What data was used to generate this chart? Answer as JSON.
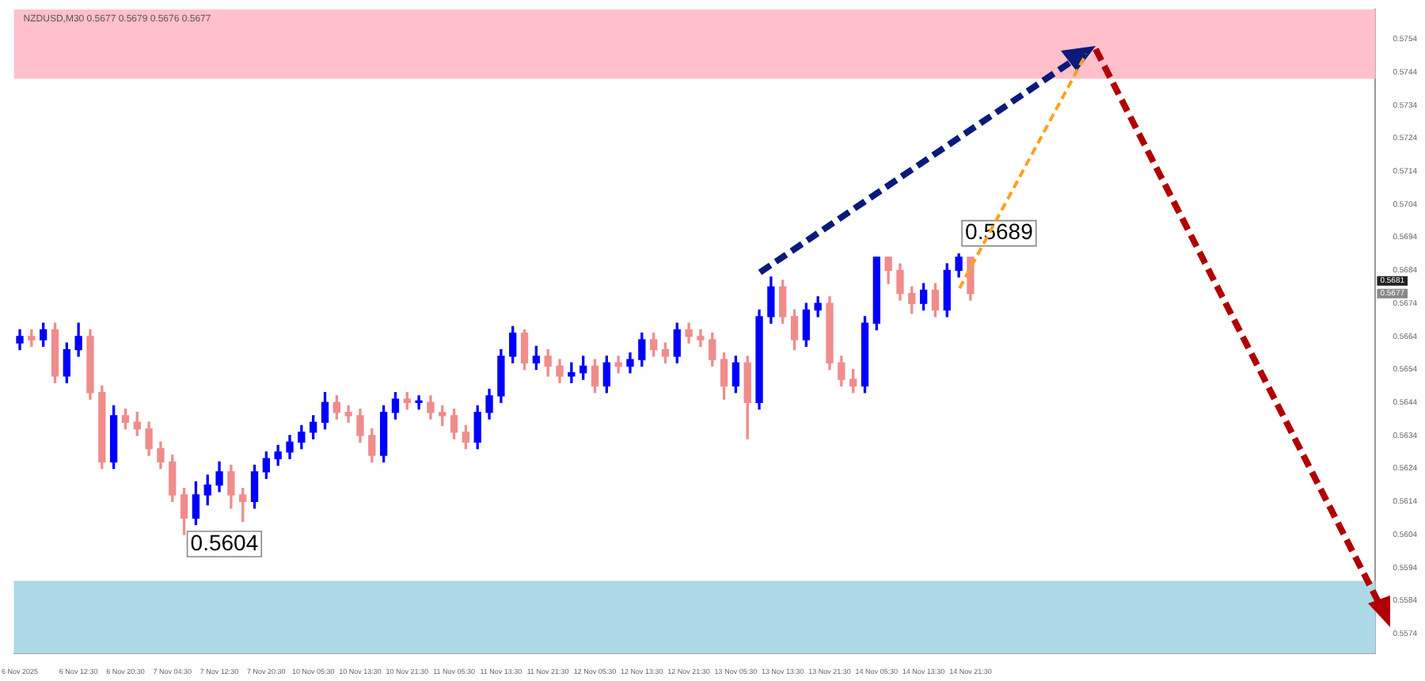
{
  "chart_data": {
    "type": "candlestick",
    "title": "NZDUSD,M30 0.5677 0.5679 0.5676 0.5677",
    "categories": [
      "6 Nov 2025",
      null,
      null,
      null,
      null,
      "6 Nov 12:30",
      null,
      null,
      null,
      "6 Nov 20:30",
      null,
      null,
      null,
      "7 Nov 04:30",
      null,
      null,
      null,
      "7 Nov 12:30",
      null,
      null,
      null,
      "7 Nov 20:30",
      null,
      null,
      null,
      "10 Nov 05:30",
      null,
      null,
      null,
      "10 Nov 13:30",
      null,
      null,
      null,
      "10 Nov 21:30",
      null,
      null,
      null,
      "11 Nov 05:30",
      null,
      null,
      null,
      "11 Nov 13:30",
      null,
      null,
      null,
      "11 Nov 21:30",
      null,
      null,
      null,
      "12 Nov 05:30",
      null,
      null,
      null,
      "12 Nov 13:30",
      null,
      null,
      null,
      "12 Nov 21:30",
      null,
      null,
      null,
      "13 Nov 05:30",
      null,
      null,
      null,
      "13 Nov 13:30",
      null,
      null,
      null,
      "13 Nov 21:30",
      null,
      null,
      null,
      "14 Nov 05:30",
      null,
      null,
      null,
      "14 Nov 13:30",
      null,
      null,
      null,
      "14 Nov 21:30",
      null,
      null,
      null,
      null,
      null,
      null,
      null,
      null,
      null,
      null,
      null,
      null,
      null,
      null,
      null,
      null,
      null,
      null,
      null,
      null,
      null,
      null,
      null,
      null,
      null,
      null,
      null,
      null,
      null,
      null,
      null,
      null,
      null,
      null
    ],
    "ohlc": [
      [
        0.5662,
        0.5666,
        0.566,
        0.5664
      ],
      [
        0.5664,
        0.5666,
        0.5661,
        0.5663
      ],
      [
        0.5663,
        0.5668,
        0.5661,
        0.5666
      ],
      [
        0.5666,
        0.5668,
        0.565,
        0.5652
      ],
      [
        0.5652,
        0.5662,
        0.565,
        0.566
      ],
      [
        0.566,
        0.5668,
        0.5658,
        0.5664
      ],
      [
        0.5664,
        0.5666,
        0.5645,
        0.5647
      ],
      [
        0.5647,
        0.5649,
        0.5624,
        0.5626
      ],
      [
        0.5626,
        0.5643,
        0.5624,
        0.564
      ],
      [
        0.564,
        0.5642,
        0.5636,
        0.5638
      ],
      [
        0.5638,
        0.5641,
        0.5634,
        0.5636
      ],
      [
        0.5636,
        0.5638,
        0.5628,
        0.563
      ],
      [
        0.563,
        0.5632,
        0.5624,
        0.5626
      ],
      [
        0.5626,
        0.5628,
        0.5614,
        0.5616
      ],
      [
        0.5616,
        0.5618,
        0.5604,
        0.5609
      ],
      [
        0.5609,
        0.562,
        0.5607,
        0.5616
      ],
      [
        0.5616,
        0.5622,
        0.5613,
        0.5619
      ],
      [
        0.5619,
        0.5626,
        0.5617,
        0.5623
      ],
      [
        0.5623,
        0.5625,
        0.5612,
        0.5616
      ],
      [
        0.5616,
        0.5618,
        0.5608,
        0.5614
      ],
      [
        0.5614,
        0.5625,
        0.5612,
        0.5623
      ],
      [
        0.5623,
        0.5629,
        0.5621,
        0.5627
      ],
      [
        0.5627,
        0.5631,
        0.5625,
        0.5629
      ],
      [
        0.5629,
        0.5634,
        0.5627,
        0.5632
      ],
      [
        0.5632,
        0.5637,
        0.563,
        0.5635
      ],
      [
        0.5635,
        0.564,
        0.5633,
        0.5638
      ],
      [
        0.5638,
        0.5647,
        0.5636,
        0.5644
      ],
      [
        0.5644,
        0.5646,
        0.5639,
        0.5641
      ],
      [
        0.5641,
        0.5643,
        0.5638,
        0.564
      ],
      [
        0.564,
        0.5642,
        0.5632,
        0.5634
      ],
      [
        0.5634,
        0.5636,
        0.5626,
        0.5628
      ],
      [
        0.5628,
        0.5643,
        0.5626,
        0.5641
      ],
      [
        0.5641,
        0.5647,
        0.5639,
        0.5645
      ],
      [
        0.5645,
        0.5647,
        0.5642,
        0.5644
      ],
      [
        0.5644,
        0.5646,
        0.5642,
        0.5644
      ],
      [
        0.5644,
        0.5646,
        0.5639,
        0.5641
      ],
      [
        0.5641,
        0.5643,
        0.5637,
        0.564
      ],
      [
        0.564,
        0.5642,
        0.5633,
        0.5635
      ],
      [
        0.5635,
        0.5637,
        0.563,
        0.5632
      ],
      [
        0.5632,
        0.5643,
        0.563,
        0.5641
      ],
      [
        0.5641,
        0.5648,
        0.5639,
        0.5646
      ],
      [
        0.5646,
        0.566,
        0.5644,
        0.5658
      ],
      [
        0.5658,
        0.5667,
        0.5656,
        0.5665
      ],
      [
        0.5665,
        0.5666,
        0.5654,
        0.5656
      ],
      [
        0.5656,
        0.5661,
        0.5654,
        0.5658
      ],
      [
        0.5658,
        0.566,
        0.5652,
        0.5655
      ],
      [
        0.5655,
        0.5657,
        0.565,
        0.5652
      ],
      [
        0.5652,
        0.5656,
        0.565,
        0.5653
      ],
      [
        0.5653,
        0.5658,
        0.5651,
        0.5655
      ],
      [
        0.5655,
        0.5657,
        0.5647,
        0.5649
      ],
      [
        0.5649,
        0.5658,
        0.5647,
        0.5656
      ],
      [
        0.5656,
        0.5658,
        0.5653,
        0.5655
      ],
      [
        0.5655,
        0.5659,
        0.5653,
        0.5657
      ],
      [
        0.5657,
        0.5665,
        0.5655,
        0.5663
      ],
      [
        0.5663,
        0.5665,
        0.5658,
        0.566
      ],
      [
        0.566,
        0.5662,
        0.5656,
        0.5658
      ],
      [
        0.5658,
        0.5668,
        0.5656,
        0.5666
      ],
      [
        0.5666,
        0.5668,
        0.5662,
        0.5664
      ],
      [
        0.5664,
        0.5666,
        0.5661,
        0.5663
      ],
      [
        0.5663,
        0.5665,
        0.5655,
        0.5657
      ],
      [
        0.5657,
        0.5659,
        0.5645,
        0.5649
      ],
      [
        0.5649,
        0.5658,
        0.5647,
        0.5656
      ],
      [
        0.5656,
        0.5658,
        0.5633,
        0.5644
      ],
      [
        0.5644,
        0.5672,
        0.5642,
        0.567
      ],
      [
        0.567,
        0.5682,
        0.5668,
        0.5679
      ],
      [
        0.5679,
        0.5681,
        0.5668,
        0.567
      ],
      [
        0.567,
        0.5672,
        0.566,
        0.5663
      ],
      [
        0.5663,
        0.5674,
        0.5661,
        0.5672
      ],
      [
        0.5672,
        0.5676,
        0.567,
        0.5674
      ],
      [
        0.5674,
        0.5676,
        0.5654,
        0.5656
      ],
      [
        0.5656,
        0.5658,
        0.5649,
        0.5651
      ],
      [
        0.5651,
        0.5654,
        0.5647,
        0.5649
      ],
      [
        0.5649,
        0.567,
        0.5647,
        0.5668
      ],
      [
        0.5668,
        0.5688,
        0.5666,
        0.5688
      ],
      [
        0.5688,
        0.5688,
        0.568,
        0.5684
      ],
      [
        0.5684,
        0.5686,
        0.5675,
        0.5677
      ],
      [
        0.5677,
        0.5679,
        0.5671,
        0.5674
      ],
      [
        0.5674,
        0.568,
        0.5672,
        0.5678
      ],
      [
        0.5678,
        0.568,
        0.567,
        0.5672
      ],
      [
        0.5672,
        0.5686,
        0.567,
        0.5684
      ],
      [
        0.5684,
        0.5689,
        0.5682,
        0.5688
      ],
      [
        0.5688,
        0.5688,
        0.5675,
        0.5677
      ],
      null,
      null,
      null,
      null,
      null,
      null,
      null,
      null,
      null,
      null,
      null,
      null,
      null,
      null,
      null,
      null,
      null,
      null,
      null,
      null,
      null,
      null,
      null,
      null,
      null,
      null,
      null,
      null,
      null,
      null,
      null,
      null,
      null,
      null
    ],
    "colors": [
      "#0000ff",
      "#f08c8c",
      "#0000ff",
      "#f08c8c",
      "#0000ff",
      "#0000ff",
      "#f08c8c",
      "#f08c8c",
      "#0000ff",
      "#f08c8c",
      "#f08c8c",
      "#f08c8c",
      "#f08c8c",
      "#f08c8c",
      "#f08c8c",
      "#0000ff",
      "#0000ff",
      "#0000ff",
      "#f08c8c",
      "#f08c8c",
      "#0000ff",
      "#0000ff",
      "#0000ff",
      "#0000ff",
      "#0000ff",
      "#0000ff",
      "#0000ff",
      "#f08c8c",
      "#f08c8c",
      "#f08c8c",
      "#f08c8c",
      "#0000ff",
      "#0000ff",
      "#f08c8c",
      "#0000ff",
      "#f08c8c",
      "#f08c8c",
      "#f08c8c",
      "#f08c8c",
      "#0000ff",
      "#0000ff",
      "#0000ff",
      "#0000ff",
      "#f08c8c",
      "#0000ff",
      "#f08c8c",
      "#f08c8c",
      "#0000ff",
      "#0000ff",
      "#f08c8c",
      "#0000ff",
      "#f08c8c",
      "#0000ff",
      "#0000ff",
      "#f08c8c",
      "#f08c8c",
      "#0000ff",
      "#f08c8c",
      "#f08c8c",
      "#f08c8c",
      "#f08c8c",
      "#0000ff",
      "#f08c8c",
      "#0000ff",
      "#0000ff",
      "#f08c8c",
      "#f08c8c",
      "#0000ff",
      "#0000ff",
      "#f08c8c",
      "#f08c8c",
      "#f08c8c",
      "#0000ff",
      "#0000ff",
      "#f08c8c",
      "#f08c8c",
      "#f08c8c",
      "#0000ff",
      "#f08c8c",
      "#0000ff",
      "#0000ff",
      "#f08c8c",
      null,
      null,
      null,
      null,
      null,
      null,
      null,
      null,
      null,
      null,
      null,
      null,
      null,
      null,
      null,
      null,
      null,
      null,
      null,
      null,
      null,
      null,
      null,
      null,
      null,
      null,
      null,
      null,
      null,
      null,
      null,
      null,
      null,
      null
    ],
    "ylim": [
      0.5568,
      0.5763
    ],
    "yticks": [
      0.5574,
      0.5584,
      0.5594,
      0.5604,
      0.5614,
      0.5624,
      0.5634,
      0.5644,
      0.5654,
      0.5664,
      0.5674,
      0.5684,
      0.5694,
      0.5704,
      0.5714,
      0.5724,
      0.5734,
      0.5744,
      0.5754
    ],
    "bands": [
      {
        "axis": "y",
        "from": 0.5742,
        "to": 0.5763,
        "color": "#ffc0cb"
      },
      {
        "axis": "y",
        "from": 0.5568,
        "to": 0.559,
        "color": "#add8e6"
      }
    ],
    "annotations": [
      "0.5604",
      "0.5689",
      "0.5681",
      "0.5677"
    ]
  }
}
